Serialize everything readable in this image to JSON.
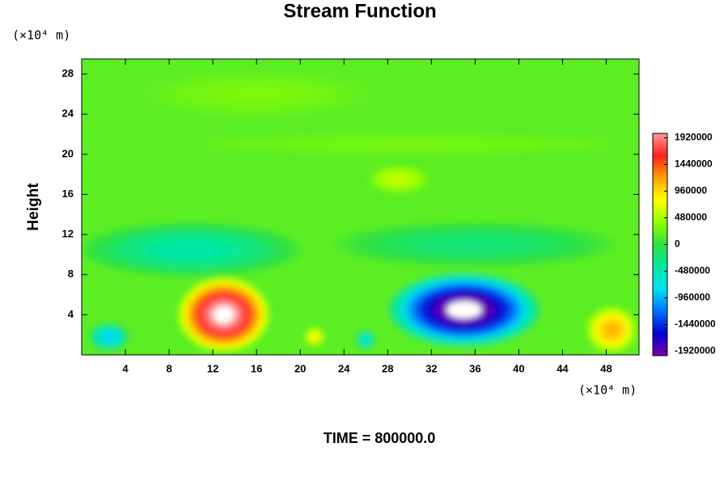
{
  "chart_data": {
    "type": "contour",
    "title": "Stream Function",
    "ylabel": "Height",
    "y_unit": "(×10⁴ m)",
    "x_unit": "(×10⁴ m)",
    "footer": "TIME = 800000.0",
    "xlim": [
      0,
      51
    ],
    "ylim": [
      0,
      29.5
    ],
    "xticks": [
      4,
      8,
      12,
      16,
      20,
      24,
      28,
      32,
      36,
      40,
      44,
      48
    ],
    "yticks": [
      4,
      8,
      12,
      16,
      20,
      24,
      28
    ],
    "clim": [
      -2000000,
      2000000
    ],
    "cticks": [
      1920000,
      1440000,
      960000,
      480000,
      0,
      -480000,
      -960000,
      -1440000,
      -1920000
    ],
    "colormap": [
      "#7a00a8",
      "#0000d0",
      "#0070ff",
      "#00e0f0",
      "#00e8a0",
      "#30e040",
      "#90ff00",
      "#ffff00",
      "#ffa000",
      "#ff2020",
      "#ff9a9a"
    ],
    "background_value": 180000,
    "features": [
      {
        "x": 16,
        "y": 26,
        "rx": 11,
        "ry": 2.5,
        "value": 320000
      },
      {
        "x": 30,
        "y": 21,
        "rx": 22,
        "ry": 1.2,
        "value": 300000
      },
      {
        "x": 10,
        "y": 10.5,
        "rx": 11,
        "ry": 3,
        "value": -450000
      },
      {
        "x": 36,
        "y": 11,
        "rx": 14,
        "ry": 2.5,
        "value": -250000
      },
      {
        "x": 29,
        "y": 17.5,
        "rx": 3,
        "ry": 1.5,
        "value": 600000
      },
      {
        "x": 13,
        "y": 4,
        "rx": 4.5,
        "ry": 4,
        "value": 2150000
      },
      {
        "x": 35,
        "y": 4.5,
        "rx": 7.5,
        "ry": 4,
        "value": -2150000
      },
      {
        "x": 48.5,
        "y": 2.5,
        "rx": 2.5,
        "ry": 2.5,
        "value": 1150000
      },
      {
        "x": 21.3,
        "y": 1.8,
        "rx": 1,
        "ry": 1,
        "value": 900000
      },
      {
        "x": 2.5,
        "y": 1.8,
        "rx": 2,
        "ry": 1.5,
        "value": -900000
      },
      {
        "x": 26,
        "y": 1.5,
        "rx": 1,
        "ry": 1,
        "value": -800000
      }
    ]
  }
}
